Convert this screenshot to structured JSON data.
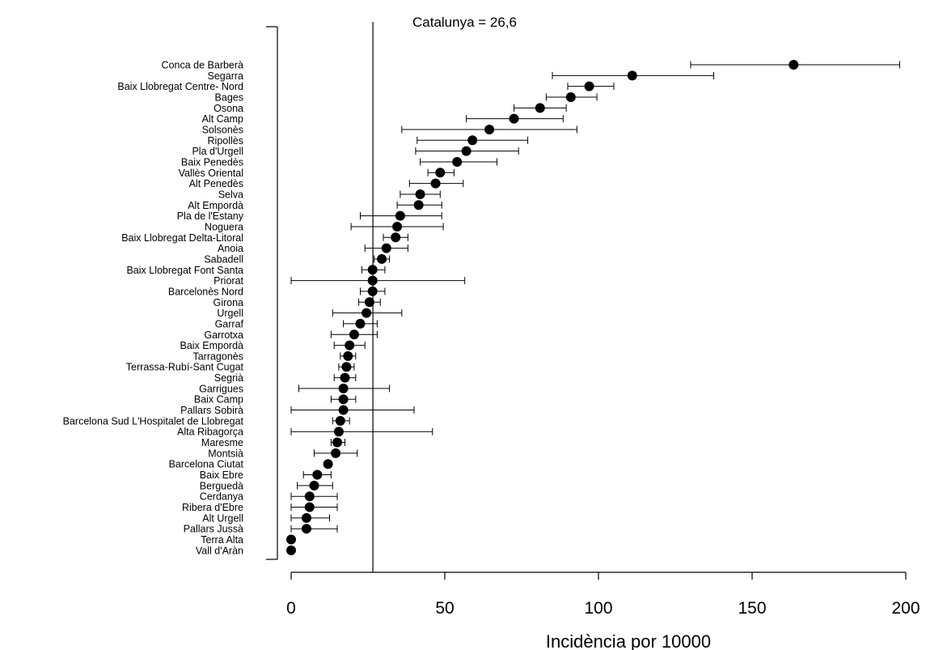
{
  "chart_data": {
    "type": "scatter",
    "subtype": "forest-plot-point-with-ci",
    "xlabel": "Incidència por 10000",
    "xlim": [
      0,
      200
    ],
    "xticks": [
      0,
      50,
      100,
      150,
      200
    ],
    "reference_line": {
      "value": 26.6,
      "label": "Catalunya = 26,6"
    },
    "grid": false,
    "points": [
      {
        "label": "Conca de Barberà",
        "value": 163.5,
        "lower": 130,
        "upper": 198
      },
      {
        "label": "Segarra",
        "value": 111,
        "lower": 85,
        "upper": 137.5
      },
      {
        "label": "Baix Llobregat Centre- Nord",
        "value": 97,
        "lower": 90,
        "upper": 105
      },
      {
        "label": "Bages",
        "value": 91,
        "lower": 83,
        "upper": 99.5
      },
      {
        "label": "Osona",
        "value": 81,
        "lower": 72.5,
        "upper": 89.5
      },
      {
        "label": "Alt Camp",
        "value": 72.5,
        "lower": 57,
        "upper": 88.5
      },
      {
        "label": "Solsonès",
        "value": 64.5,
        "lower": 36,
        "upper": 93
      },
      {
        "label": "Ripollès",
        "value": 59,
        "lower": 41,
        "upper": 77
      },
      {
        "label": "Pla d'Urgell",
        "value": 57,
        "lower": 40.5,
        "upper": 74
      },
      {
        "label": "Baix Penedès",
        "value": 54,
        "lower": 42,
        "upper": 67
      },
      {
        "label": "Vallès Oriental",
        "value": 48.5,
        "lower": 44.5,
        "upper": 53
      },
      {
        "label": "Alt Penedès",
        "value": 47,
        "lower": 38.5,
        "upper": 56
      },
      {
        "label": "Selva",
        "value": 42,
        "lower": 35.5,
        "upper": 48.5
      },
      {
        "label": "Alt Empordà",
        "value": 41.5,
        "lower": 34.5,
        "upper": 49
      },
      {
        "label": "Pla de l'Estany",
        "value": 35.5,
        "lower": 22.5,
        "upper": 49
      },
      {
        "label": "Noguera",
        "value": 34.5,
        "lower": 19.5,
        "upper": 49.5
      },
      {
        "label": "Baix Llobregat Delta-Litoral",
        "value": 34,
        "lower": 30,
        "upper": 38
      },
      {
        "label": "Anoia",
        "value": 31,
        "lower": 24,
        "upper": 38
      },
      {
        "label": "Sabadell",
        "value": 29.5,
        "lower": 27,
        "upper": 32
      },
      {
        "label": "Baix Llobregat Font Santa",
        "value": 26.5,
        "lower": 23,
        "upper": 30.5
      },
      {
        "label": "Priorat",
        "value": 26.5,
        "lower": 0,
        "upper": 56.5
      },
      {
        "label": "Barcelonès Nord",
        "value": 26.5,
        "lower": 22.5,
        "upper": 30.5
      },
      {
        "label": "Girona",
        "value": 25.5,
        "lower": 22,
        "upper": 29
      },
      {
        "label": "Urgell",
        "value": 24.5,
        "lower": 13.5,
        "upper": 36
      },
      {
        "label": "Garraf",
        "value": 22.5,
        "lower": 17,
        "upper": 28
      },
      {
        "label": "Garrotxa",
        "value": 20.5,
        "lower": 13,
        "upper": 28
      },
      {
        "label": "Baix Empordà",
        "value": 19,
        "lower": 14,
        "upper": 24
      },
      {
        "label": "Tarragonès",
        "value": 18.5,
        "lower": 16,
        "upper": 21
      },
      {
        "label": "Terrassa-Rubí-Sant Cugat",
        "value": 18,
        "lower": 15.5,
        "upper": 20.5
      },
      {
        "label": "Segrià",
        "value": 17.5,
        "lower": 14,
        "upper": 21
      },
      {
        "label": "Garrigues",
        "value": 17,
        "lower": 2.5,
        "upper": 32
      },
      {
        "label": "Baix Camp",
        "value": 17,
        "lower": 13,
        "upper": 21
      },
      {
        "label": "Pallars Sobirà",
        "value": 17,
        "lower": 0,
        "upper": 40
      },
      {
        "label": "Barcelona Sud L'Hospitalet de Llobregat",
        "value": 16,
        "lower": 13.5,
        "upper": 19
      },
      {
        "label": "Alta Ribagorça",
        "value": 15.5,
        "lower": 0,
        "upper": 46
      },
      {
        "label": "Maresme",
        "value": 15,
        "lower": 13,
        "upper": 17.5
      },
      {
        "label": "Montsià",
        "value": 14.5,
        "lower": 7.5,
        "upper": 21.5
      },
      {
        "label": "Barcelona Ciutat",
        "value": 12,
        "lower": 11.5,
        "upper": 13
      },
      {
        "label": "Baix Ebre",
        "value": 8.5,
        "lower": 4,
        "upper": 13
      },
      {
        "label": "Berguedà",
        "value": 7.5,
        "lower": 2,
        "upper": 13.5
      },
      {
        "label": "Cerdanya",
        "value": 6,
        "lower": 0,
        "upper": 15
      },
      {
        "label": "Ribera d'Ebre",
        "value": 6,
        "lower": 0,
        "upper": 15
      },
      {
        "label": "Alt Urgell",
        "value": 5,
        "lower": 0,
        "upper": 12.5
      },
      {
        "label": "Pallars Jussà",
        "value": 5,
        "lower": 0,
        "upper": 15
      },
      {
        "label": "Terra Alta",
        "value": 0,
        "lower": 0,
        "upper": 0
      },
      {
        "label": "Vall d'Aràn",
        "value": 0,
        "lower": 0,
        "upper": 0
      }
    ]
  },
  "colors": {
    "point": "#000000",
    "line": "#000000",
    "background": "#ffffff"
  }
}
